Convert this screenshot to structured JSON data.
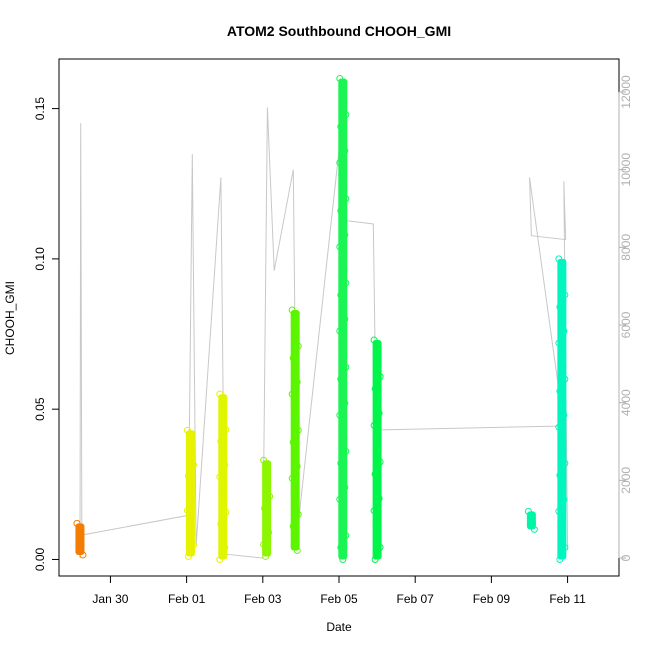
{
  "chart_data": {
    "type": "scatter",
    "title": "ATOM2 Southbound CHOOH_GMI",
    "xlabel": "Date",
    "ylabel": "CHOOH_GMI",
    "x_ticks": [
      "Jan 30",
      "Feb 01",
      "Feb 03",
      "Feb 05",
      "Feb 07",
      "Feb 09",
      "Feb 11"
    ],
    "x_tick_days": [
      30,
      32,
      34,
      36,
      38,
      40,
      42
    ],
    "xlim": [
      28.65,
      43.35
    ],
    "y_ticks": [
      "0.00",
      "0.05",
      "0.10",
      "0.15"
    ],
    "y_tick_values": [
      0.0,
      0.05,
      0.1,
      0.15
    ],
    "ylim": [
      -0.0055,
      0.1665
    ],
    "y2_ticks": [
      "0",
      "2000",
      "4000",
      "6000",
      "8000",
      "10000",
      "12000"
    ],
    "y2_tick_values": [
      0,
      2000,
      4000,
      6000,
      8000,
      10000,
      12000
    ],
    "y2_color": "#b0b0b0",
    "grid": false,
    "flights": [
      {
        "day": 29.2,
        "ymin": 0.0015,
        "ymax": 0.012,
        "color": "#f47c00"
      },
      {
        "day": 32.1,
        "ymin": 0.001,
        "ymax": 0.043,
        "color": "#e6f200"
      },
      {
        "day": 32.95,
        "ymin": 0.0,
        "ymax": 0.055,
        "color": "#e0f500"
      },
      {
        "day": 34.1,
        "ymin": 0.001,
        "ymax": 0.033,
        "color": "#8cf500"
      },
      {
        "day": 34.85,
        "ymin": 0.003,
        "ymax": 0.083,
        "color": "#5cf500"
      },
      {
        "day": 36.1,
        "ymin": 0.0,
        "ymax": 0.16,
        "color": "#1af553"
      },
      {
        "day": 37.0,
        "ymin": 0.0,
        "ymax": 0.073,
        "color": "#00f54b"
      },
      {
        "day": 41.05,
        "ymin": 0.01,
        "ymax": 0.016,
        "color": "#00f5a6"
      },
      {
        "day": 41.85,
        "ymin": 0.0,
        "ymax": 0.1,
        "color": "#00f5c0"
      }
    ],
    "altitude_series": {
      "color": "#c8c8c8",
      "points": [
        [
          29.2,
          0
        ],
        [
          29.22,
          11200
        ],
        [
          29.25,
          100
        ],
        [
          29.3,
          600
        ],
        [
          32.05,
          1100
        ],
        [
          32.15,
          10400
        ],
        [
          32.25,
          300
        ],
        [
          32.9,
          9800
        ],
        [
          33.0,
          100
        ],
        [
          34.0,
          0
        ],
        [
          34.12,
          11600
        ],
        [
          34.3,
          7400
        ],
        [
          34.8,
          10000
        ],
        [
          34.9,
          600
        ],
        [
          36.0,
          10500
        ],
        [
          36.1,
          8700
        ],
        [
          36.9,
          8600
        ],
        [
          37.0,
          1600
        ],
        [
          37.05,
          3300
        ],
        [
          41.9,
          3400
        ],
        [
          41.0,
          9800
        ],
        [
          41.05,
          8300
        ],
        [
          41.95,
          8200
        ],
        [
          41.9,
          9700
        ],
        [
          42.0,
          200
        ]
      ]
    }
  }
}
